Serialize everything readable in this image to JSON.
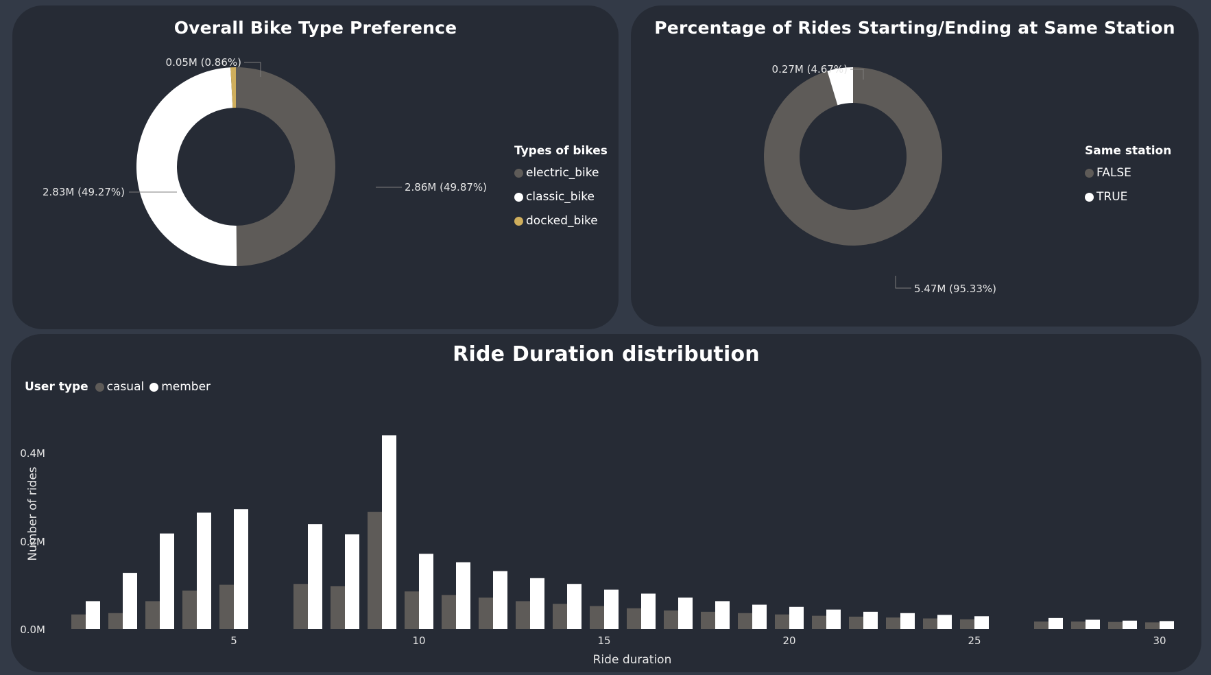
{
  "colors": {
    "dark_gray": "#5e5b58",
    "white": "#ffffff",
    "gold": "#cfae5c",
    "background": "#262b35"
  },
  "bike_chart": {
    "title": "Overall Bike Type Preference",
    "legend_title": "Types of bikes",
    "labels": {
      "electric": "2.86M (49.87%)",
      "classic": "2.83M (49.27%)",
      "docked": "0.05M (0.86%)"
    },
    "legend": [
      "electric_bike",
      "classic_bike",
      "docked_bike"
    ]
  },
  "station_chart": {
    "title": "Percentage of Rides Starting/Ending at Same Station",
    "legend_title": "Same station",
    "labels": {
      "false": "5.47M (95.33%)",
      "true": "0.27M (4.67%)"
    },
    "legend": [
      "FALSE",
      "TRUE"
    ]
  },
  "duration_chart": {
    "title": "Ride Duration distribution",
    "legend_title": "User type",
    "legend": [
      "casual",
      "member"
    ],
    "xlabel": "Ride duration",
    "ylabel": "Number of rides",
    "y_tick_labels": [
      "0.0M",
      "0.2M",
      "0.4M"
    ],
    "x_tick_labels": [
      "5",
      "10",
      "15",
      "20",
      "25",
      "30"
    ]
  },
  "chart_data": [
    {
      "type": "pie",
      "title": "Overall Bike Type Preference",
      "legend_title": "Types of bikes",
      "categories": [
        "electric_bike",
        "classic_bike",
        "docked_bike"
      ],
      "values": [
        2.86,
        2.83,
        0.05
      ],
      "percent": [
        49.87,
        49.27,
        0.86
      ],
      "unit": "M",
      "colors": [
        "#5e5b58",
        "#ffffff",
        "#cfae5c"
      ],
      "legend_position": "right"
    },
    {
      "type": "pie",
      "title": "Percentage of Rides Starting/Ending at Same Station",
      "legend_title": "Same station",
      "categories": [
        "FALSE",
        "TRUE"
      ],
      "values": [
        5.47,
        0.27
      ],
      "percent": [
        95.33,
        4.67
      ],
      "unit": "M",
      "colors": [
        "#5e5b58",
        "#ffffff"
      ],
      "legend_position": "right"
    },
    {
      "type": "bar",
      "title": "Ride Duration distribution",
      "xlabel": "Ride duration",
      "ylabel": "Number of rides",
      "x": [
        1,
        2,
        3,
        4,
        5,
        7,
        8,
        9,
        10,
        11,
        12,
        13,
        14,
        15,
        16,
        17,
        18,
        19,
        20,
        21,
        22,
        23,
        24,
        25,
        27,
        28,
        29,
        30
      ],
      "x_ticks": [
        5,
        10,
        15,
        20,
        25,
        30
      ],
      "xlim": [
        0.5,
        30.5
      ],
      "ylim": [
        0,
        0.4
      ],
      "y_ticks": [
        0,
        0.2,
        0.4
      ],
      "unit": "M",
      "grid": false,
      "legend_position": "top-left",
      "series": [
        {
          "name": "casual",
          "color": "#5e5b58",
          "values": [
            0.033,
            0.036,
            0.063,
            0.087,
            0.1,
            0.102,
            0.097,
            0.265,
            0.085,
            0.077,
            0.071,
            0.063,
            0.057,
            0.052,
            0.047,
            0.042,
            0.039,
            0.036,
            0.033,
            0.03,
            0.028,
            0.026,
            0.024,
            0.022,
            0.017,
            0.017,
            0.016,
            0.015
          ]
        },
        {
          "name": "member",
          "color": "#ffffff",
          "values": [
            0.063,
            0.127,
            0.216,
            0.263,
            0.271,
            0.237,
            0.214,
            0.438,
            0.17,
            0.151,
            0.131,
            0.115,
            0.102,
            0.089,
            0.08,
            0.071,
            0.063,
            0.055,
            0.05,
            0.044,
            0.039,
            0.036,
            0.032,
            0.029,
            0.025,
            0.021,
            0.019,
            0.018
          ]
        }
      ]
    }
  ]
}
